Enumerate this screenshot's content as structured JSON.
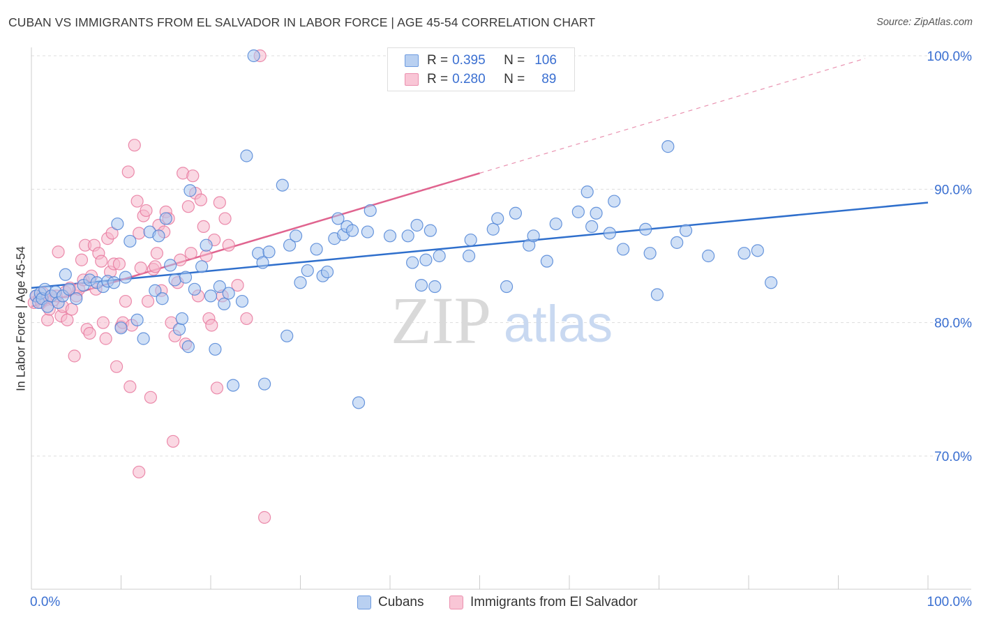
{
  "header": {
    "title": "CUBAN VS IMMIGRANTS FROM EL SALVADOR IN LABOR FORCE | AGE 45-54 CORRELATION CHART",
    "source": "Source: ZipAtlas.com"
  },
  "legend": {
    "cubans": {
      "r_label": "R =",
      "r_value": "0.395",
      "n_label": "N =",
      "n_value": "106"
    },
    "elsalvador": {
      "r_label": "R =",
      "r_value": "0.280",
      "n_label": "N =",
      "n_value": "89"
    }
  },
  "bottom_legend": {
    "cubans": "Cubans",
    "elsalvador": "Immigrants from El Salvador"
  },
  "watermark": {
    "zip": "ZIP",
    "atlas": "atlas"
  },
  "colors": {
    "blue_fill": "#a9c6ef",
    "blue_stroke": "#4f84d6",
    "blue_line": "#2f6fcc",
    "pink_fill": "#f6b8cc",
    "pink_stroke": "#e8789d",
    "pink_line": "#e0648f",
    "grid": "#dddddd",
    "tick_label": "#3a6fd1"
  },
  "chart_data": {
    "type": "scatter",
    "title": "CUBAN VS IMMIGRANTS FROM EL SALVADOR IN LABOR FORCE | AGE 45-54 CORRELATION CHART",
    "xlabel": "",
    "ylabel": "In Labor Force | Age 45-54",
    "xlim": [
      0,
      100
    ],
    "ylim": [
      60.5,
      102
    ],
    "x_tick_labels": [
      "0.0%",
      "100.0%"
    ],
    "y_ticks": [
      70,
      80,
      90,
      100
    ],
    "y_tick_labels": [
      "70.0%",
      "80.0%",
      "90.0%",
      "100.0%"
    ],
    "grid": true,
    "series": [
      {
        "name": "Cubans",
        "r": 0.395,
        "n": 106,
        "trend": {
          "x0": 0,
          "y0": 82.6,
          "x1": 100,
          "y1": 89.0,
          "dashed_from": null
        },
        "points": [
          [
            0.5,
            82.0
          ],
          [
            0.8,
            81.5
          ],
          [
            1.0,
            82.2
          ],
          [
            1.2,
            81.8
          ],
          [
            1.5,
            82.5
          ],
          [
            1.8,
            81.2
          ],
          [
            2.2,
            82.0
          ],
          [
            2.7,
            82.3
          ],
          [
            3.0,
            81.5
          ],
          [
            3.5,
            82.0
          ],
          [
            3.8,
            83.6
          ],
          [
            4.2,
            82.5
          ],
          [
            5.0,
            81.8
          ],
          [
            5.8,
            82.8
          ],
          [
            6.5,
            83.2
          ],
          [
            7.3,
            83.0
          ],
          [
            8.0,
            82.7
          ],
          [
            8.5,
            83.1
          ],
          [
            9.2,
            83.0
          ],
          [
            9.6,
            87.4
          ],
          [
            10.0,
            79.6
          ],
          [
            10.5,
            83.4
          ],
          [
            11.0,
            86.1
          ],
          [
            11.8,
            80.2
          ],
          [
            12.5,
            78.8
          ],
          [
            13.2,
            86.8
          ],
          [
            13.8,
            82.4
          ],
          [
            14.2,
            86.5
          ],
          [
            14.6,
            81.8
          ],
          [
            15.0,
            87.8
          ],
          [
            15.5,
            84.3
          ],
          [
            16.0,
            83.2
          ],
          [
            16.5,
            79.5
          ],
          [
            16.8,
            80.3
          ],
          [
            17.2,
            83.4
          ],
          [
            17.5,
            78.2
          ],
          [
            17.7,
            89.9
          ],
          [
            18.2,
            82.5
          ],
          [
            19.0,
            84.2
          ],
          [
            19.5,
            85.8
          ],
          [
            20.0,
            82.0
          ],
          [
            20.5,
            78.0
          ],
          [
            21.0,
            82.7
          ],
          [
            21.5,
            81.4
          ],
          [
            22.0,
            82.2
          ],
          [
            22.5,
            75.3
          ],
          [
            23.5,
            81.6
          ],
          [
            24.0,
            92.5
          ],
          [
            24.8,
            100.0
          ],
          [
            25.3,
            85.2
          ],
          [
            25.8,
            84.5
          ],
          [
            26.0,
            75.4
          ],
          [
            26.5,
            85.3
          ],
          [
            28.0,
            90.3
          ],
          [
            28.5,
            79.0
          ],
          [
            28.8,
            85.8
          ],
          [
            29.5,
            86.5
          ],
          [
            30.0,
            83.0
          ],
          [
            30.8,
            83.9
          ],
          [
            31.8,
            85.5
          ],
          [
            32.5,
            83.5
          ],
          [
            33.0,
            83.8
          ],
          [
            33.8,
            86.3
          ],
          [
            34.2,
            87.8
          ],
          [
            34.8,
            86.6
          ],
          [
            35.2,
            87.2
          ],
          [
            35.8,
            86.9
          ],
          [
            36.5,
            74.0
          ],
          [
            37.5,
            86.8
          ],
          [
            37.8,
            88.4
          ],
          [
            40.0,
            86.5
          ],
          [
            42.0,
            86.5
          ],
          [
            42.5,
            84.5
          ],
          [
            43.0,
            87.3
          ],
          [
            43.5,
            82.8
          ],
          [
            44.0,
            84.7
          ],
          [
            44.5,
            86.9
          ],
          [
            45.0,
            82.7
          ],
          [
            45.5,
            85.0
          ],
          [
            48.8,
            85.0
          ],
          [
            49.0,
            86.2
          ],
          [
            51.5,
            87.0
          ],
          [
            52.0,
            87.8
          ],
          [
            53.0,
            82.7
          ],
          [
            54.0,
            88.2
          ],
          [
            55.5,
            85.8
          ],
          [
            56.0,
            86.5
          ],
          [
            57.5,
            84.6
          ],
          [
            58.5,
            87.4
          ],
          [
            61.0,
            88.3
          ],
          [
            62.0,
            89.8
          ],
          [
            62.5,
            87.2
          ],
          [
            63.0,
            88.2
          ],
          [
            64.5,
            86.7
          ],
          [
            65.0,
            89.1
          ],
          [
            66.0,
            85.5
          ],
          [
            68.5,
            87.0
          ],
          [
            69.0,
            85.2
          ],
          [
            69.8,
            82.1
          ],
          [
            71.0,
            93.2
          ],
          [
            72.0,
            86.0
          ],
          [
            73.0,
            86.9
          ],
          [
            75.5,
            85.0
          ],
          [
            79.5,
            85.2
          ],
          [
            81.0,
            85.4
          ],
          [
            82.5,
            83.0
          ]
        ]
      },
      {
        "name": "Immigrants from El Salvador",
        "r": 0.28,
        "n": 89,
        "trend": {
          "x0": 0,
          "y0": 81.2,
          "x1": 50,
          "y1": 91.2,
          "dashed_to_x": 100,
          "dashed_to_y": 101.2
        },
        "points": [
          [
            0.3,
            81.5
          ],
          [
            0.6,
            82.0
          ],
          [
            0.9,
            81.8
          ],
          [
            1.1,
            81.5
          ],
          [
            1.3,
            82.2
          ],
          [
            1.6,
            81.7
          ],
          [
            1.8,
            80.2
          ],
          [
            2.0,
            81.0
          ],
          [
            2.3,
            82.0
          ],
          [
            2.5,
            81.7
          ],
          [
            2.8,
            82.0
          ],
          [
            3.0,
            85.3
          ],
          [
            3.3,
            80.5
          ],
          [
            3.5,
            81.2
          ],
          [
            3.8,
            82.3
          ],
          [
            4.0,
            80.2
          ],
          [
            4.3,
            82.6
          ],
          [
            4.5,
            81.0
          ],
          [
            4.8,
            77.5
          ],
          [
            5.0,
            82.0
          ],
          [
            5.3,
            82.5
          ],
          [
            5.6,
            84.7
          ],
          [
            5.8,
            83.2
          ],
          [
            6.0,
            85.8
          ],
          [
            6.2,
            79.5
          ],
          [
            6.5,
            79.2
          ],
          [
            6.7,
            83.5
          ],
          [
            7.0,
            85.8
          ],
          [
            7.2,
            82.5
          ],
          [
            7.5,
            85.2
          ],
          [
            7.8,
            84.6
          ],
          [
            8.0,
            80.0
          ],
          [
            8.3,
            78.8
          ],
          [
            8.5,
            86.3
          ],
          [
            8.8,
            83.8
          ],
          [
            9.0,
            86.7
          ],
          [
            9.2,
            84.4
          ],
          [
            9.5,
            76.7
          ],
          [
            9.8,
            84.4
          ],
          [
            10.0,
            79.7
          ],
          [
            10.2,
            80.0
          ],
          [
            10.5,
            81.6
          ],
          [
            10.8,
            91.3
          ],
          [
            11.0,
            75.2
          ],
          [
            11.2,
            79.8
          ],
          [
            11.5,
            93.3
          ],
          [
            11.8,
            89.1
          ],
          [
            12.0,
            86.7
          ],
          [
            12.2,
            84.1
          ],
          [
            12.5,
            88.0
          ],
          [
            12.8,
            88.4
          ],
          [
            13.0,
            81.6
          ],
          [
            13.3,
            74.4
          ],
          [
            13.6,
            84.0
          ],
          [
            13.8,
            84.2
          ],
          [
            14.0,
            85.2
          ],
          [
            14.2,
            87.3
          ],
          [
            14.5,
            82.4
          ],
          [
            14.8,
            86.8
          ],
          [
            15.0,
            88.3
          ],
          [
            15.3,
            87.8
          ],
          [
            15.6,
            80.0
          ],
          [
            15.8,
            71.1
          ],
          [
            16.0,
            79.0
          ],
          [
            16.3,
            83.0
          ],
          [
            16.6,
            84.7
          ],
          [
            16.9,
            91.2
          ],
          [
            17.2,
            78.4
          ],
          [
            17.5,
            88.7
          ],
          [
            17.8,
            85.2
          ],
          [
            18.0,
            91.0
          ],
          [
            18.3,
            89.7
          ],
          [
            18.6,
            82.0
          ],
          [
            18.9,
            89.2
          ],
          [
            19.2,
            87.2
          ],
          [
            19.5,
            85.0
          ],
          [
            19.8,
            80.3
          ],
          [
            20.1,
            79.8
          ],
          [
            20.4,
            86.2
          ],
          [
            20.7,
            75.1
          ],
          [
            21.0,
            89.0
          ],
          [
            21.3,
            82.0
          ],
          [
            21.6,
            87.8
          ],
          [
            22.0,
            85.8
          ],
          [
            12.0,
            68.8
          ],
          [
            26.0,
            65.4
          ],
          [
            25.5,
            100.0
          ],
          [
            24.0,
            80.3
          ],
          [
            23.0,
            82.8
          ]
        ]
      }
    ]
  }
}
